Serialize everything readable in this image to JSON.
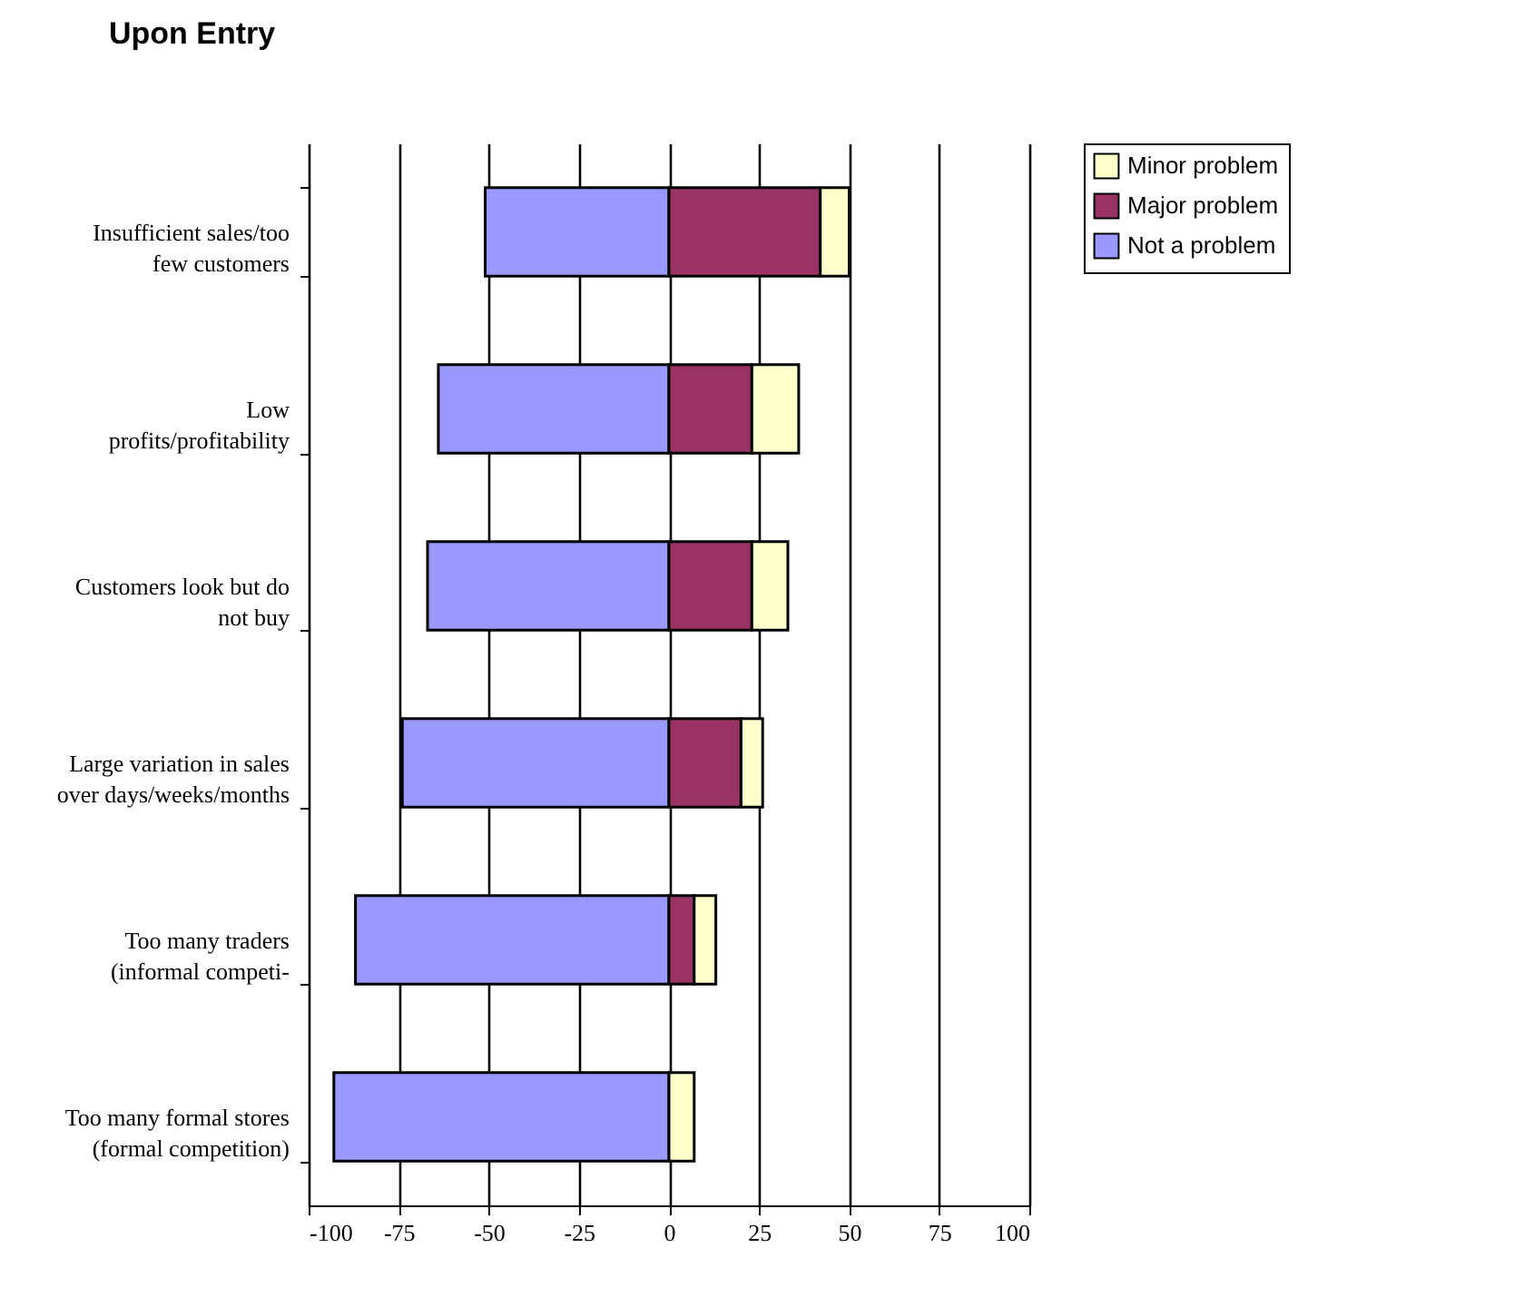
{
  "chart_data": {
    "type": "bar",
    "title": "Upon Entry",
    "orientation": "horizontal",
    "stacked": true,
    "categories": [
      "Insufficient sales/too few customers",
      "Low profits/profitability",
      "Customers look but do not buy",
      "Large variation in sales over days/weeks/months",
      "Too many traders (informal competi-",
      "Too many formal stores (formal competition)"
    ],
    "series": [
      {
        "name": "Not a problem",
        "color": "#9999ff",
        "values": [
          -51,
          -64,
          -67,
          -74,
          -87,
          -93
        ]
      },
      {
        "name": "Major problem",
        "color": "#993366",
        "values": [
          42,
          23,
          23,
          20,
          7,
          null
        ]
      },
      {
        "name": "Minor problem",
        "color": "#ffffcc",
        "values": [
          8,
          13,
          10,
          6,
          6,
          7
        ]
      }
    ],
    "xlim": [
      -100,
      100
    ],
    "xticks": [
      -100,
      -75,
      -50,
      -25,
      0,
      25,
      50,
      75,
      100
    ],
    "grid": "x",
    "legend": "right"
  }
}
